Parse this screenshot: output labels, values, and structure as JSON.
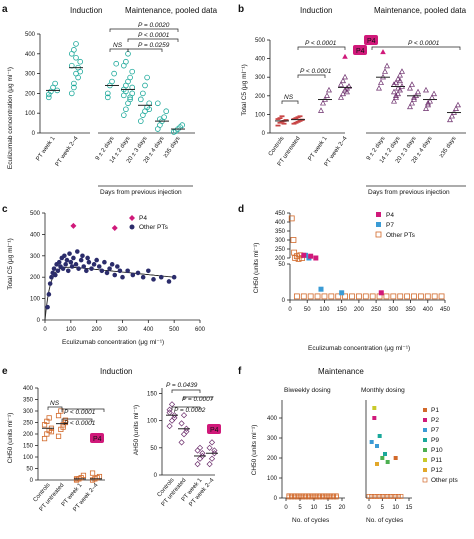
{
  "panels": {
    "a": {
      "label": "a",
      "sections": [
        "Induction",
        "Maintenance, pooled data"
      ],
      "ylabel": "Eculizumab concentration (μg ml⁻¹)",
      "yticks": [
        "0",
        "100",
        "200",
        "300",
        "400",
        "500"
      ],
      "xcategories": [
        "PT week 1",
        "PT week 2–4",
        "9 ± 2 days",
        "14 ± 2 days",
        "20 ± 3 days",
        "28 ± 4 days",
        "≥35 days"
      ],
      "subtitle": "Days from previous injection",
      "annotations": [
        "NS",
        "P = 0.0020",
        "P < 0.0001",
        "P = 0.0259"
      ]
    },
    "b": {
      "label": "b",
      "sections": [
        "Induction",
        "Maintenance, pooled data"
      ],
      "ylabel": "Total C5 (μg ml⁻¹)",
      "yticks": [
        "0",
        "100",
        "200",
        "300",
        "400",
        "500"
      ],
      "xcategories": [
        "Controls",
        "PT untreated",
        "PT week 1",
        "PT week 2–4",
        "9 ± 2 days",
        "14 ± 2 days",
        "20 ± 3 days",
        "28 ± 4 days",
        "≥35 days"
      ],
      "subtitle": "Days from previous injection",
      "annotations": [
        "NS",
        "P < 0.0001",
        "P < 0.0001",
        "P < 0.0001"
      ],
      "badges": [
        "P4",
        "P4"
      ]
    },
    "c": {
      "label": "c",
      "ylabel": "Total C5 (μg ml⁻¹)",
      "xlabel": "Eculizumab concentration (μg ml⁻¹)",
      "yticks": [
        "0",
        "100",
        "200",
        "300",
        "400",
        "500"
      ],
      "xticks": [
        "0",
        "100",
        "200",
        "300",
        "400",
        "500",
        "600"
      ],
      "legend": [
        "P4",
        "Other PTs"
      ]
    },
    "d": {
      "label": "d",
      "ylabel": "CH50 (units ml⁻¹)",
      "xlabel": "Eculizumab concentration (μg ml⁻¹)",
      "yticks": [
        "0",
        "50",
        "200",
        "250",
        "300",
        "350",
        "400",
        "450"
      ],
      "xticks": [
        "0",
        "50",
        "100",
        "150",
        "200",
        "250",
        "300",
        "350",
        "400",
        "450"
      ],
      "legend": [
        "P4",
        "P7",
        "Other PTs"
      ]
    },
    "e": {
      "label": "e",
      "title": "Induction",
      "ylabel_left": "CH50 (units ml⁻¹)",
      "ylabel_right": "AH50 (units ml⁻¹)",
      "yticks_left": [
        "0",
        "50",
        "100",
        "150",
        "200",
        "250",
        "300",
        "350",
        "400"
      ],
      "yticks_right": [
        "0",
        "50",
        "100",
        "150"
      ],
      "xcategories": [
        "Controls",
        "PT untreated",
        "PT week 1",
        "PT week 2–4"
      ],
      "annotations_left": [
        "NS",
        "P < 0.0001",
        "P < 0.0001"
      ],
      "annotations_right": [
        "P = 0.0439",
        "P = 0.0007",
        "P = 0.0002"
      ],
      "badge": "P4"
    },
    "f": {
      "label": "f",
      "title": "Maintenance",
      "subtitles": [
        "Biweekly dosing",
        "Monthly dosing"
      ],
      "ylabel": "CH50 (units ml⁻¹)",
      "yticks": [
        "0",
        "100",
        "200",
        "300",
        "400"
      ],
      "xticks_left": [
        "0",
        "5",
        "10",
        "15",
        "20"
      ],
      "xticks_right": [
        "0",
        "5",
        "10",
        "15"
      ],
      "xlabel": "No. of cycles",
      "legend": [
        "P1",
        "P2",
        "P7",
        "P9",
        "P10",
        "P11",
        "P12",
        "Other pts"
      ]
    }
  },
  "colors": {
    "teal": "#1aa89a",
    "navy": "#2b2c6b",
    "magenta": "#d0197a",
    "blue": "#3a9bd5",
    "orange": "#d2692a",
    "purple": "#6b2d6b"
  },
  "chart_data": [
    {
      "type": "scatter",
      "panel": "a",
      "xlabel": "",
      "ylabel": "Eculizumab concentration (μg ml⁻¹)",
      "ylim": [
        0,
        500
      ],
      "categories": [
        "PT week 1",
        "PT week 2–4",
        "9 ± 2 days",
        "14 ± 2 days",
        "20 ± 3 days",
        "28 ± 4 days",
        "≥35 days"
      ],
      "medians": [
        215,
        330,
        240,
        220,
        140,
        60,
        20
      ],
      "series": [
        {
          "values": [
            [
              180,
              210,
              230,
              250,
              215,
              195
            ]
          ]
        },
        {
          "values": [
            [
              200,
              250,
              300,
              330,
              360,
              400,
              420,
              450,
              280,
              310,
              340,
              230,
              380
            ]
          ]
        },
        {
          "values": [
            [
              200,
              240,
              260,
              300,
              350,
              180
            ]
          ]
        },
        {
          "values": [
            [
              90,
              120,
              150,
              180,
              200,
              220,
              240,
              260,
              280,
              310,
              340,
              360,
              400,
              170,
              230,
              190,
              210
            ]
          ]
        },
        {
          "values": [
            [
              60,
              90,
              110,
              130,
              150,
              170,
              200,
              240,
              280,
              120
            ]
          ]
        },
        {
          "values": [
            [
              20,
              40,
              60,
              80,
              110,
              150,
              70
            ]
          ]
        },
        {
          "values": [
            [
              5,
              10,
              20,
              30,
              40
            ]
          ]
        }
      ]
    },
    {
      "type": "scatter",
      "panel": "b",
      "ylabel": "Total C5 (μg ml⁻¹)",
      "ylim": [
        0,
        500
      ],
      "categories": [
        "Controls",
        "PT untreated",
        "PT week 1",
        "PT week 2–4",
        "9 ± 2 days",
        "14 ± 2 days",
        "20 ± 3 days",
        "28 ± 4 days",
        "≥35 days"
      ],
      "medians": [
        65,
        72,
        180,
        245,
        300,
        250,
        200,
        180,
        110
      ],
      "highlight": [
        {
          "name": "P4",
          "category": "PT week 2–4",
          "value": 410
        },
        {
          "name": "P4",
          "category": "9 ± 2 days",
          "value": 435
        }
      ]
    },
    {
      "type": "scatter",
      "panel": "c",
      "xlabel": "Eculizumab concentration (μg ml⁻¹)",
      "ylabel": "Total C5 (μg ml⁻¹)",
      "xlim": [
        0,
        600
      ],
      "ylim": [
        0,
        500
      ],
      "series": [
        {
          "name": "P4",
          "points": [
            [
              110,
              440
            ],
            [
              270,
              430
            ]
          ]
        },
        {
          "name": "Other PTs",
          "points": [
            [
              10,
              60
            ],
            [
              15,
              120
            ],
            [
              20,
              170
            ],
            [
              25,
              200
            ],
            [
              30,
              220
            ],
            [
              35,
              240
            ],
            [
              40,
              210
            ],
            [
              45,
              260
            ],
            [
              50,
              230
            ],
            [
              55,
              270
            ],
            [
              60,
              250
            ],
            [
              65,
              290
            ],
            [
              70,
              240
            ],
            [
              75,
              300
            ],
            [
              80,
              260
            ],
            [
              85,
              280
            ],
            [
              90,
              230
            ],
            [
              95,
              310
            ],
            [
              100,
              270
            ],
            [
              105,
              250
            ],
            [
              110,
              290
            ],
            [
              120,
              260
            ],
            [
              125,
              320
            ],
            [
              130,
              240
            ],
            [
              140,
              280
            ],
            [
              145,
              300
            ],
            [
              150,
              250
            ],
            [
              160,
              230
            ],
            [
              165,
              290
            ],
            [
              170,
              270
            ],
            [
              180,
              240
            ],
            [
              190,
              260
            ],
            [
              200,
              280
            ],
            [
              210,
              250
            ],
            [
              220,
              230
            ],
            [
              230,
              270
            ],
            [
              240,
              220
            ],
            [
              250,
              240
            ],
            [
              260,
              260
            ],
            [
              270,
              210
            ],
            [
              280,
              250
            ],
            [
              290,
              230
            ],
            [
              300,
              200
            ],
            [
              320,
              230
            ],
            [
              340,
              210
            ],
            [
              360,
              220
            ],
            [
              380,
              200
            ],
            [
              400,
              230
            ],
            [
              420,
              190
            ],
            [
              450,
              200
            ],
            [
              480,
              180
            ],
            [
              500,
              200
            ]
          ]
        }
      ]
    },
    {
      "type": "scatter",
      "panel": "d",
      "xlabel": "Eculizumab concentration (μg ml⁻¹)",
      "ylabel": "CH50 (units ml⁻¹)",
      "series": [
        {
          "name": "P4",
          "points": [
            [
              60,
              210
            ],
            [
              75,
              200
            ],
            [
              265,
              10
            ],
            [
              40,
              215
            ]
          ]
        },
        {
          "name": "P7",
          "points": [
            [
              45,
              215
            ],
            [
              55,
              200
            ],
            [
              150,
              10
            ],
            [
              90,
              15
            ]
          ]
        },
        {
          "name": "Other PTs",
          "points": [
            [
              5,
              420
            ],
            [
              10,
              300
            ],
            [
              12,
              230
            ],
            [
              15,
              200
            ],
            [
              20,
              210
            ],
            [
              25,
              195
            ],
            [
              30,
              215
            ],
            [
              35,
              200
            ],
            [
              20,
              5
            ],
            [
              40,
              5
            ],
            [
              60,
              5
            ],
            [
              80,
              5
            ],
            [
              100,
              5
            ],
            [
              120,
              5
            ],
            [
              140,
              5
            ],
            [
              160,
              5
            ],
            [
              180,
              5
            ],
            [
              200,
              5
            ],
            [
              220,
              5
            ],
            [
              240,
              5
            ],
            [
              260,
              5
            ],
            [
              280,
              5
            ],
            [
              300,
              5
            ],
            [
              320,
              5
            ],
            [
              340,
              5
            ],
            [
              360,
              5
            ],
            [
              380,
              5
            ],
            [
              400,
              5
            ],
            [
              420,
              5
            ],
            [
              440,
              5
            ]
          ]
        }
      ]
    },
    {
      "type": "scatter",
      "panel": "e",
      "categories": [
        "Controls",
        "PT untreated",
        "PT week 1",
        "PT week 2–4"
      ],
      "ylabel": "CH50 (units ml⁻¹)",
      "medians_left": [
        225,
        245,
        5,
        5
      ],
      "medians_right": [
        110,
        85,
        35,
        40
      ],
      "ylabel_right": "AH50 (units ml⁻¹)"
    },
    {
      "type": "scatter",
      "panel": "f",
      "ylabel": "CH50 (units ml⁻¹)",
      "xlabel": "No. of cycles",
      "series": [
        {
          "name": "P1",
          "points": [
            [
              10,
              200
            ]
          ]
        },
        {
          "name": "P2",
          "points": [
            [
              2,
              400
            ]
          ]
        },
        {
          "name": "P7",
          "points": [
            [
              1,
              280
            ],
            [
              3,
              260
            ]
          ]
        },
        {
          "name": "P9",
          "points": [
            [
              6,
              220
            ],
            [
              4,
              310
            ]
          ]
        },
        {
          "name": "P10",
          "points": [
            [
              7,
              180
            ],
            [
              5,
              200
            ]
          ]
        },
        {
          "name": "P11",
          "points": [
            [
              2,
              450
            ]
          ]
        },
        {
          "name": "P12",
          "points": [
            [
              3,
              170
            ]
          ]
        }
      ]
    }
  ]
}
